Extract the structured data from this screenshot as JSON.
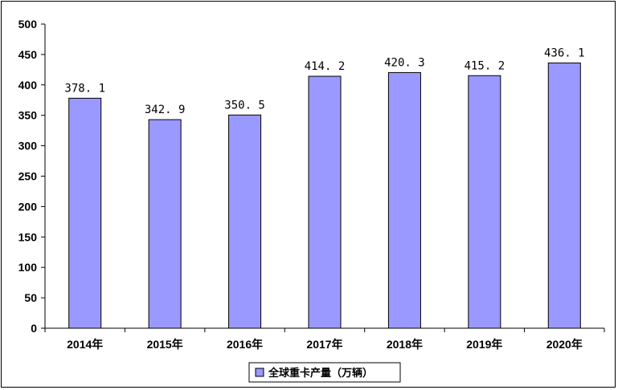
{
  "chart_data": {
    "type": "bar",
    "categories": [
      "2014年",
      "2015年",
      "2016年",
      "2017年",
      "2018年",
      "2019年",
      "2020年"
    ],
    "series": [
      {
        "name": "全球重卡产量（万辆）",
        "values": [
          378.1,
          342.9,
          350.5,
          414.2,
          420.3,
          415.2,
          436.1
        ],
        "value_labels": [
          "378. 1",
          "342. 9",
          "350. 5",
          "414. 2",
          "420. 3",
          "415. 2",
          "436. 1"
        ],
        "color": "#9999ff"
      }
    ],
    "ylim": [
      0,
      500
    ],
    "yticks": [
      0,
      50,
      100,
      150,
      200,
      250,
      300,
      350,
      400,
      450,
      500
    ],
    "title": "",
    "xlabel": "",
    "ylabel": "",
    "grid": false,
    "legend_position": "bottom-center"
  },
  "colors": {
    "bar_fill": "#9999ff",
    "bar_stroke": "#000000",
    "axis": "#000000"
  }
}
